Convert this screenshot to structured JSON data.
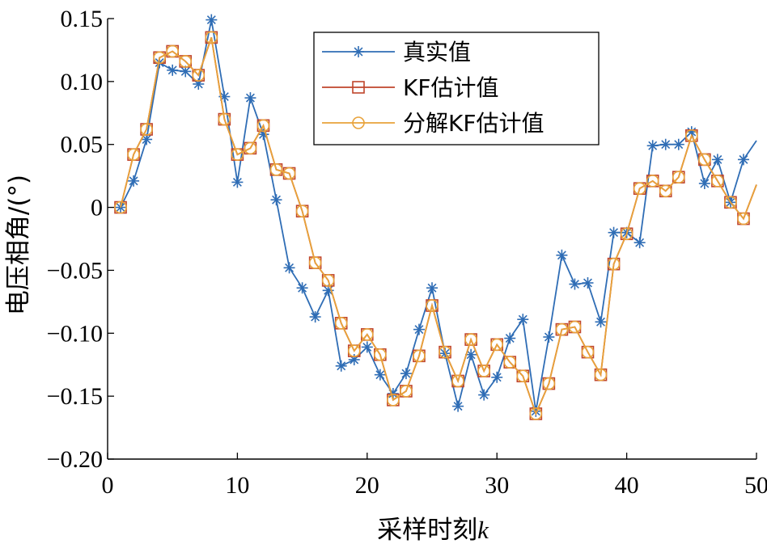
{
  "chart_data": {
    "type": "line",
    "xlabel": "采样时刻",
    "xlabel_var": "k",
    "ylabel": "电压相角/(°)",
    "xlim": [
      0,
      50
    ],
    "ylim": [
      -0.2,
      0.15
    ],
    "x_ticks": [
      "0",
      "10",
      "20",
      "30",
      "40",
      "50"
    ],
    "y_ticks": [
      "-0.20",
      "-0.15",
      "-0.10",
      "-0.05",
      "0",
      "0.05",
      "0.10",
      "0.15"
    ],
    "x_tick_values": [
      0,
      10,
      20,
      30,
      40,
      50
    ],
    "y_tick_values": [
      -0.2,
      -0.15,
      -0.1,
      -0.05,
      0,
      0.05,
      0.1,
      0.15
    ],
    "grid": false,
    "legend_position": "top-right",
    "x": [
      1,
      2,
      3,
      4,
      5,
      6,
      7,
      8,
      9,
      10,
      11,
      12,
      13,
      14,
      15,
      16,
      17,
      18,
      19,
      20,
      21,
      22,
      23,
      24,
      25,
      26,
      27,
      28,
      29,
      30,
      31,
      32,
      33,
      34,
      35,
      36,
      37,
      38,
      39,
      40,
      41,
      42,
      43,
      44,
      45,
      46,
      47,
      48,
      49,
      50
    ],
    "series": [
      {
        "name": "真实值",
        "color": "#2F6DB5",
        "marker": "asterisk",
        "values": [
          0,
          0.021,
          0.054,
          0.115,
          0.109,
          0.108,
          0.098,
          0.149,
          0.088,
          0.02,
          0.087,
          0.058,
          0.006,
          -0.048,
          -0.064,
          -0.087,
          -0.066,
          -0.126,
          -0.121,
          -0.111,
          -0.133,
          -0.148,
          -0.132,
          -0.097,
          -0.064,
          -0.116,
          -0.158,
          -0.117,
          -0.149,
          -0.135,
          -0.104,
          -0.089,
          -0.162,
          -0.103,
          -0.038,
          -0.061,
          -0.06,
          -0.091,
          -0.02,
          -0.02,
          -0.028,
          0.049,
          0.05,
          0.05,
          0.06,
          0.019,
          0.038,
          0.004,
          0.038,
          0.053
        ]
      },
      {
        "name": "KF估计值",
        "color": "#C0452B",
        "marker": "square",
        "values": [
          0,
          0.042,
          0.062,
          0.119,
          0.124,
          0.116,
          0.105,
          0.135,
          0.07,
          0.042,
          0.047,
          0.065,
          0.03,
          0.027,
          -0.003,
          -0.044,
          -0.058,
          -0.092,
          -0.114,
          -0.101,
          -0.117,
          -0.153,
          -0.146,
          -0.118,
          -0.078,
          -0.115,
          -0.138,
          -0.105,
          -0.13,
          -0.109,
          -0.123,
          -0.134,
          -0.164,
          -0.14,
          -0.097,
          -0.095,
          -0.115,
          -0.133,
          -0.045,
          -0.021,
          0.015,
          0.021,
          0.013,
          0.024,
          0.057,
          0.038,
          0.021,
          0.004,
          -0.009,
          0.018
        ]
      },
      {
        "name": "分解KF估计值",
        "color": "#E8A23A",
        "marker": "circle",
        "values": [
          0,
          0.042,
          0.062,
          0.119,
          0.124,
          0.116,
          0.105,
          0.135,
          0.07,
          0.042,
          0.047,
          0.065,
          0.03,
          0.027,
          -0.003,
          -0.044,
          -0.058,
          -0.092,
          -0.114,
          -0.101,
          -0.117,
          -0.153,
          -0.146,
          -0.118,
          -0.078,
          -0.115,
          -0.138,
          -0.105,
          -0.13,
          -0.109,
          -0.123,
          -0.134,
          -0.164,
          -0.14,
          -0.097,
          -0.095,
          -0.115,
          -0.133,
          -0.045,
          -0.021,
          0.015,
          0.021,
          0.013,
          0.024,
          0.057,
          0.038,
          0.021,
          0.004,
          -0.009,
          0.018
        ]
      }
    ]
  }
}
